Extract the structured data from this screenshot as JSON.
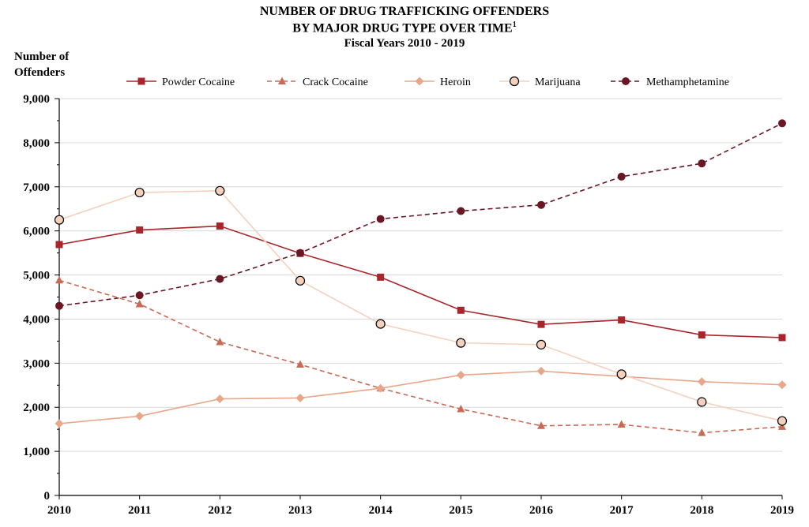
{
  "chart_data": {
    "type": "line",
    "title_line1": "NUMBER OF DRUG TRAFFICKING OFFENDERS",
    "title_line2": "BY MAJOR DRUG TYPE OVER TIME",
    "title_footnote": "1",
    "subtitle": "Fiscal Years 2010 - 2019",
    "ylabel_line1": "Number of",
    "ylabel_line2": "Offenders",
    "xlabel": "",
    "x": [
      "2010",
      "2011",
      "2012",
      "2013",
      "2014",
      "2015",
      "2016",
      "2017",
      "2018",
      "2019"
    ],
    "ylim": [
      0,
      9000
    ],
    "yticks": [
      "0",
      "1,000",
      "2,000",
      "3,000",
      "4,000",
      "5,000",
      "6,000",
      "7,000",
      "8,000",
      "9,000"
    ],
    "ytick_values": [
      0,
      1000,
      2000,
      3000,
      4000,
      5000,
      6000,
      7000,
      8000,
      9000
    ],
    "grid": true,
    "legend_position": "top",
    "series": [
      {
        "name": "Powder Cocaine",
        "color": "#A8262B",
        "dashed": false,
        "marker": "square",
        "values": [
          5690,
          6020,
          6110,
          5490,
          4950,
          4200,
          3880,
          3980,
          3640,
          3580
        ]
      },
      {
        "name": "Crack Cocaine",
        "color": "#C96A55",
        "dashed": true,
        "marker": "triangle",
        "values": [
          4880,
          4340,
          3480,
          2970,
          2430,
          1960,
          1580,
          1610,
          1420,
          1560
        ]
      },
      {
        "name": "Heroin",
        "color": "#E9A789",
        "dashed": false,
        "marker": "diamond",
        "values": [
          1630,
          1800,
          2190,
          2210,
          2430,
          2730,
          2820,
          2700,
          2580,
          2510
        ]
      },
      {
        "name": "Marijuana",
        "color": "#F4D1BD",
        "dashed": false,
        "marker": "circle-open",
        "values": [
          6250,
          6870,
          6910,
          4870,
          3890,
          3460,
          3420,
          2750,
          2120,
          1690
        ]
      },
      {
        "name": "Methamphetamine",
        "color": "#6B1624",
        "dashed": true,
        "marker": "circle",
        "values": [
          4300,
          4540,
          4910,
          5500,
          6270,
          6450,
          6590,
          7230,
          7530,
          8440
        ]
      }
    ]
  }
}
